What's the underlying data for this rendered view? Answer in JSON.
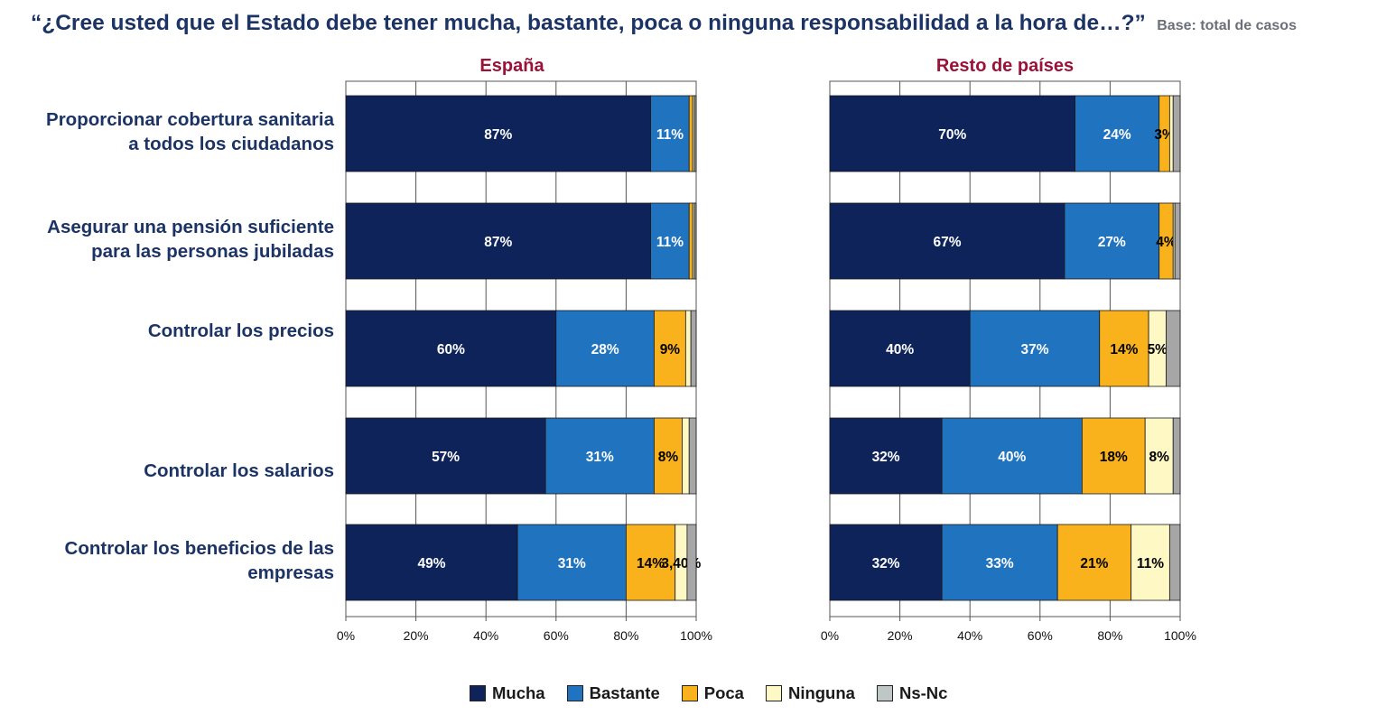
{
  "header": {
    "title": "“¿Cree usted que el Estado debe tener mucha, bastante, poca o ninguna responsabilidad a la hora de…?”",
    "base_note": "Base: total de casos"
  },
  "categories": [
    "Proporcionar cobertura sanitaria a todos los ciudadanos",
    "Asegurar una pensión suficiente para las personas jubiladas",
    "Controlar los precios",
    "Controlar los salarios",
    "Controlar los beneficios de las empresas"
  ],
  "category_lines": [
    [
      "Proporcionar cobertura sanitaria",
      "a todos los ciudadanos"
    ],
    [
      "Asegurar una pensión suficiente",
      "para las personas jubiladas"
    ],
    [
      "Controlar los precios"
    ],
    [
      "Controlar los salarios"
    ],
    [
      "Controlar los beneficios de las",
      "empresas"
    ]
  ],
  "legend": [
    {
      "name": "Mucha",
      "color": "#0d2359"
    },
    {
      "name": "Bastante",
      "color": "#1f73bf"
    },
    {
      "name": "Poca",
      "color": "#f9b21c"
    },
    {
      "name": "Ninguna",
      "color": "#fef8c4"
    },
    {
      "name": "Ns-Nc",
      "color": "#a6a6a6"
    }
  ],
  "colors": {
    "label_light": "#ffffff",
    "label_dark": "#000000",
    "grid": "#555555",
    "title": "#1c3366",
    "panel_title": "#9b1238"
  },
  "chart_data": [
    {
      "type": "bar",
      "orientation": "horizontal",
      "stacked": true,
      "title": "España",
      "xlim": [
        0,
        100
      ],
      "xticks": [
        "0%",
        "20%",
        "40%",
        "60%",
        "80%",
        "100%"
      ],
      "series": [
        {
          "name": "Mucha",
          "values": [
            87,
            87,
            60,
            57,
            49
          ],
          "labels": [
            "87%",
            "87%",
            "60%",
            "57%",
            "49%"
          ]
        },
        {
          "name": "Bastante",
          "values": [
            11,
            11,
            28,
            31,
            31
          ],
          "labels": [
            "11%",
            "11%",
            "28%",
            "31%",
            "31%"
          ]
        },
        {
          "name": "Poca",
          "values": [
            1,
            1,
            9,
            8,
            14
          ],
          "labels": [
            "",
            "",
            "9%",
            "8%",
            "14%"
          ]
        },
        {
          "name": "Ninguna",
          "values": [
            0.5,
            0.5,
            1.5,
            2,
            3.4
          ],
          "labels": [
            "",
            "",
            "",
            "",
            "3,40%"
          ]
        },
        {
          "name": "Ns-Nc",
          "values": [
            0.5,
            0.5,
            1.5,
            2,
            2.6
          ],
          "labels": [
            "",
            "",
            "",
            "",
            ""
          ]
        }
      ]
    },
    {
      "type": "bar",
      "orientation": "horizontal",
      "stacked": true,
      "title": "Resto de países",
      "xlim": [
        0,
        100
      ],
      "xticks": [
        "0%",
        "20%",
        "40%",
        "60%",
        "80%",
        "100%"
      ],
      "series": [
        {
          "name": "Mucha",
          "values": [
            70,
            67,
            40,
            32,
            32
          ],
          "labels": [
            "70%",
            "67%",
            "40%",
            "32%",
            "32%"
          ]
        },
        {
          "name": "Bastante",
          "values": [
            24,
            27,
            37,
            40,
            33
          ],
          "labels": [
            "24%",
            "27%",
            "37%",
            "40%",
            "33%"
          ]
        },
        {
          "name": "Poca",
          "values": [
            3,
            4,
            14,
            18,
            21
          ],
          "labels": [
            "3%",
            "4%",
            "14%",
            "18%",
            "21%"
          ]
        },
        {
          "name": "Ninguna",
          "values": [
            1,
            0.5,
            5,
            8,
            11
          ],
          "labels": [
            "",
            "",
            "5%",
            "8%",
            "11%"
          ]
        },
        {
          "name": "Ns-Nc",
          "values": [
            2,
            1.5,
            4,
            2,
            3
          ],
          "labels": [
            "",
            "",
            "",
            "",
            ""
          ]
        }
      ]
    }
  ]
}
